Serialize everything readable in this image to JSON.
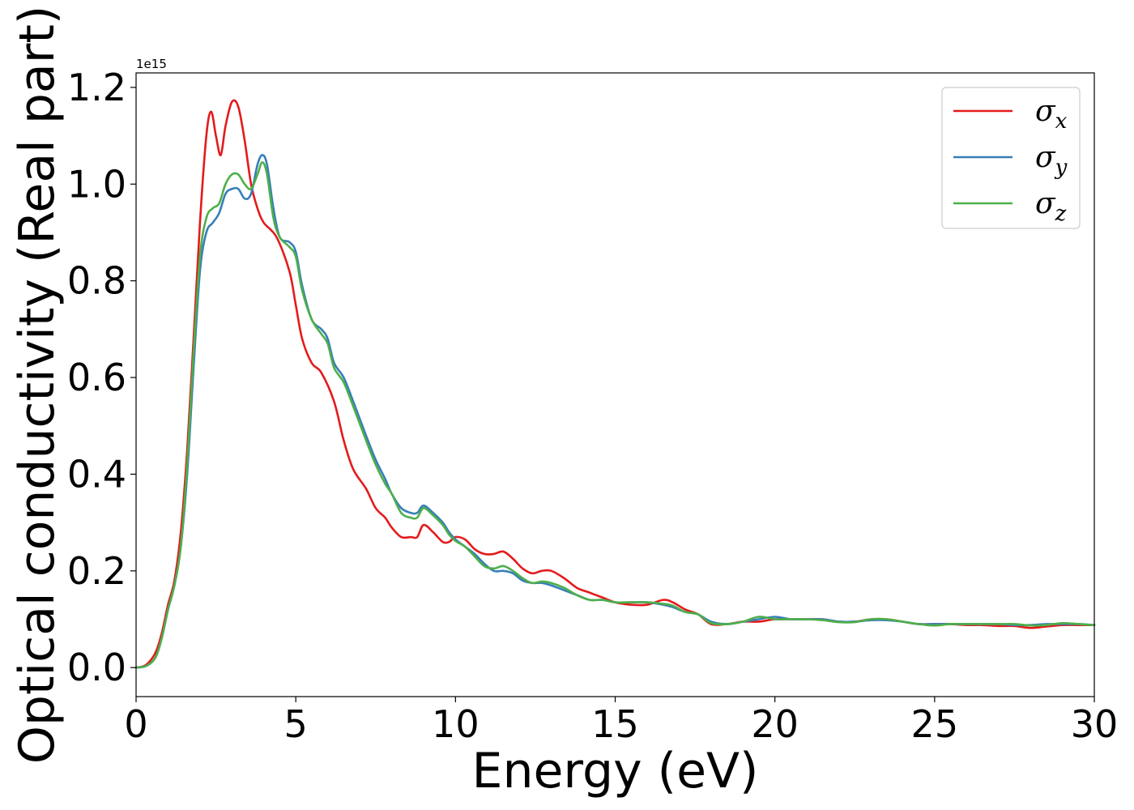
{
  "chart_data": {
    "type": "line",
    "title": "",
    "xlabel": "Energy (eV)",
    "ylabel": "Optical conductivity (Real part)",
    "y_offset_label": "1e15",
    "xlim": [
      0,
      30
    ],
    "ylim": [
      -0.06,
      1.23
    ],
    "xticks": [
      0,
      5,
      10,
      15,
      20,
      25,
      30
    ],
    "yticks": [
      0.0,
      0.2,
      0.4,
      0.6,
      0.8,
      1.0,
      1.2
    ],
    "xtick_labels": [
      "0",
      "5",
      "10",
      "15",
      "20",
      "25",
      "30"
    ],
    "ytick_labels": [
      "0.0",
      "0.2",
      "0.4",
      "0.6",
      "0.8",
      "1.0",
      "1.2"
    ],
    "grid": false,
    "legend_position": "top-right",
    "series": [
      {
        "name": "σx",
        "symbol": "σ",
        "subscript": "x",
        "color": "#e41a1c",
        "x": [
          0,
          0.3,
          0.6,
          0.8,
          1.0,
          1.2,
          1.4,
          1.6,
          1.8,
          2.0,
          2.2,
          2.35,
          2.5,
          2.65,
          2.8,
          3.0,
          3.2,
          3.4,
          3.6,
          3.8,
          4.0,
          4.4,
          4.8,
          5.0,
          5.2,
          5.5,
          5.8,
          6.2,
          6.5,
          6.8,
          7.2,
          7.5,
          7.8,
          8.0,
          8.3,
          8.6,
          8.8,
          9.0,
          9.3,
          9.6,
          9.8,
          10.0,
          10.3,
          10.6,
          10.9,
          11.2,
          11.5,
          11.8,
          12.1,
          12.4,
          12.7,
          13.0,
          13.4,
          13.8,
          14.2,
          14.6,
          15.0,
          15.5,
          16.0,
          16.5,
          16.8,
          17.2,
          17.6,
          18.0,
          18.5,
          19.0,
          19.5,
          20.0,
          20.5,
          21.0,
          21.5,
          22.0,
          22.5,
          23.0,
          23.5,
          24.0,
          24.5,
          25.0,
          25.5,
          26.0,
          26.5,
          27.0,
          27.5,
          28.0,
          28.5,
          29.0,
          29.5,
          30.0
        ],
        "values": [
          0.0,
          0.005,
          0.03,
          0.07,
          0.13,
          0.18,
          0.28,
          0.45,
          0.68,
          0.92,
          1.1,
          1.15,
          1.1,
          1.06,
          1.12,
          1.17,
          1.16,
          1.09,
          1.0,
          0.95,
          0.92,
          0.89,
          0.82,
          0.75,
          0.68,
          0.63,
          0.61,
          0.55,
          0.47,
          0.41,
          0.37,
          0.33,
          0.31,
          0.29,
          0.27,
          0.27,
          0.27,
          0.295,
          0.28,
          0.26,
          0.26,
          0.27,
          0.265,
          0.245,
          0.235,
          0.235,
          0.24,
          0.225,
          0.205,
          0.195,
          0.2,
          0.2,
          0.185,
          0.165,
          0.155,
          0.145,
          0.135,
          0.13,
          0.13,
          0.14,
          0.135,
          0.12,
          0.11,
          0.09,
          0.09,
          0.095,
          0.095,
          0.1,
          0.1,
          0.1,
          0.1,
          0.095,
          0.095,
          0.1,
          0.1,
          0.095,
          0.09,
          0.09,
          0.09,
          0.088,
          0.088,
          0.086,
          0.086,
          0.082,
          0.085,
          0.088,
          0.088,
          0.088
        ]
      },
      {
        "name": "σy",
        "symbol": "σ",
        "subscript": "y",
        "color": "#377eb8",
        "x": [
          0,
          0.3,
          0.6,
          0.8,
          1.0,
          1.2,
          1.4,
          1.6,
          1.8,
          2.0,
          2.2,
          2.4,
          2.6,
          2.8,
          3.0,
          3.2,
          3.4,
          3.6,
          3.8,
          3.95,
          4.1,
          4.3,
          4.5,
          4.8,
          5.0,
          5.2,
          5.5,
          5.8,
          6.0,
          6.2,
          6.5,
          6.8,
          7.2,
          7.5,
          7.8,
          8.0,
          8.3,
          8.6,
          8.8,
          9.0,
          9.3,
          9.6,
          9.8,
          10.0,
          10.3,
          10.6,
          10.9,
          11.2,
          11.5,
          11.8,
          12.1,
          12.4,
          12.7,
          13.0,
          13.4,
          13.8,
          14.2,
          14.6,
          15.0,
          15.5,
          16.0,
          16.5,
          16.8,
          17.2,
          17.6,
          18.0,
          18.5,
          19.0,
          19.5,
          20.0,
          20.5,
          21.0,
          21.5,
          22.0,
          22.5,
          23.0,
          23.5,
          24.0,
          24.5,
          25.0,
          25.5,
          26.0,
          26.5,
          27.0,
          27.5,
          28.0,
          28.5,
          29.0,
          29.5,
          30.0
        ],
        "values": [
          0.0,
          0.003,
          0.02,
          0.06,
          0.12,
          0.17,
          0.25,
          0.4,
          0.62,
          0.82,
          0.9,
          0.92,
          0.94,
          0.98,
          0.99,
          0.99,
          0.97,
          0.98,
          1.04,
          1.06,
          1.04,
          0.95,
          0.89,
          0.88,
          0.86,
          0.79,
          0.72,
          0.7,
          0.68,
          0.63,
          0.6,
          0.55,
          0.48,
          0.43,
          0.39,
          0.36,
          0.33,
          0.32,
          0.32,
          0.335,
          0.32,
          0.3,
          0.28,
          0.265,
          0.25,
          0.235,
          0.215,
          0.2,
          0.2,
          0.195,
          0.18,
          0.175,
          0.175,
          0.17,
          0.16,
          0.15,
          0.14,
          0.14,
          0.135,
          0.135,
          0.135,
          0.13,
          0.125,
          0.115,
          0.11,
          0.095,
          0.09,
          0.095,
          0.1,
          0.105,
          0.1,
          0.1,
          0.1,
          0.095,
          0.095,
          0.098,
          0.098,
          0.095,
          0.09,
          0.09,
          0.09,
          0.09,
          0.09,
          0.09,
          0.088,
          0.088,
          0.09,
          0.09,
          0.09,
          0.088
        ]
      },
      {
        "name": "σz",
        "symbol": "σ",
        "subscript": "z",
        "color": "#4daf4a",
        "x": [
          0,
          0.3,
          0.6,
          0.8,
          1.0,
          1.2,
          1.4,
          1.6,
          1.8,
          2.0,
          2.2,
          2.4,
          2.6,
          2.8,
          3.0,
          3.2,
          3.4,
          3.6,
          3.8,
          3.95,
          4.1,
          4.3,
          4.5,
          4.8,
          5.0,
          5.2,
          5.5,
          5.8,
          6.0,
          6.2,
          6.5,
          6.8,
          7.2,
          7.5,
          7.8,
          8.0,
          8.3,
          8.6,
          8.8,
          9.0,
          9.3,
          9.6,
          9.8,
          10.0,
          10.3,
          10.6,
          10.9,
          11.2,
          11.5,
          11.8,
          12.1,
          12.4,
          12.7,
          13.0,
          13.4,
          13.8,
          14.2,
          14.6,
          15.0,
          15.5,
          16.0,
          16.5,
          16.8,
          17.2,
          17.6,
          18.0,
          18.5,
          19.0,
          19.5,
          20.0,
          20.5,
          21.0,
          21.5,
          22.0,
          22.5,
          23.0,
          23.5,
          24.0,
          24.5,
          25.0,
          25.5,
          26.0,
          26.5,
          27.0,
          27.5,
          28.0,
          28.5,
          29.0,
          29.5,
          30.0
        ],
        "values": [
          0.0,
          0.003,
          0.02,
          0.06,
          0.12,
          0.17,
          0.25,
          0.42,
          0.65,
          0.85,
          0.93,
          0.95,
          0.96,
          1.0,
          1.02,
          1.02,
          1.0,
          0.99,
          1.02,
          1.045,
          1.02,
          0.93,
          0.89,
          0.87,
          0.85,
          0.78,
          0.72,
          0.69,
          0.67,
          0.62,
          0.59,
          0.54,
          0.47,
          0.42,
          0.38,
          0.36,
          0.32,
          0.31,
          0.31,
          0.33,
          0.315,
          0.295,
          0.275,
          0.262,
          0.25,
          0.23,
          0.21,
          0.205,
          0.21,
          0.2,
          0.185,
          0.175,
          0.178,
          0.175,
          0.165,
          0.15,
          0.14,
          0.14,
          0.135,
          0.135,
          0.135,
          0.132,
          0.128,
          0.115,
          0.11,
          0.092,
          0.09,
          0.095,
          0.105,
          0.1,
          0.1,
          0.1,
          0.098,
          0.094,
          0.094,
          0.1,
          0.1,
          0.095,
          0.09,
          0.087,
          0.09,
          0.09,
          0.09,
          0.09,
          0.09,
          0.087,
          0.088,
          0.092,
          0.09,
          0.088
        ]
      }
    ]
  }
}
